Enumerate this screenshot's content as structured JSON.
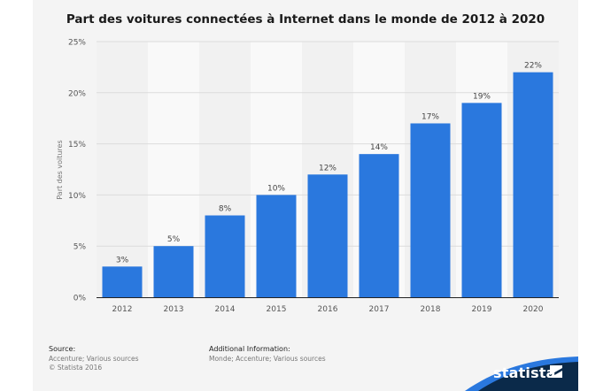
{
  "chart_data": {
    "type": "bar",
    "title": "Part des voitures connectées à Internet dans le monde de 2012 à 2020",
    "ylabel": "Part des voitures",
    "xlabel": "",
    "categories": [
      "2012",
      "2013",
      "2014",
      "2015",
      "2016",
      "2017",
      "2018",
      "2019",
      "2020"
    ],
    "values": [
      3,
      5,
      8,
      10,
      12,
      14,
      17,
      19,
      22
    ],
    "value_labels": [
      "3%",
      "5%",
      "8%",
      "10%",
      "12%",
      "14%",
      "17%",
      "19%",
      "22%"
    ],
    "ylim": [
      0,
      25
    ],
    "yticks": [
      0,
      5,
      10,
      15,
      20,
      25
    ],
    "ytick_labels": [
      "0%",
      "5%",
      "10%",
      "15%",
      "20%",
      "25%"
    ],
    "grid": true,
    "bar_color": "#2a78de"
  },
  "footer": {
    "source_heading": "Source:",
    "source_text": "Accenture; Various sources",
    "copyright": "© Statista 2016",
    "info_heading": "Additional Information:",
    "info_text": "Monde; Accenture; Various sources"
  },
  "brand": {
    "name": "statista",
    "logo_icon": "statista-logo-icon",
    "colors": {
      "dark": "#0b2a4a",
      "accent": "#2a78de"
    }
  }
}
